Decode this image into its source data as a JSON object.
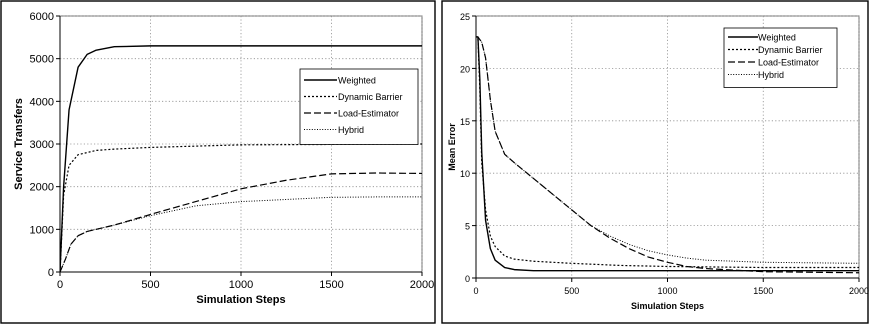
{
  "chart_data": [
    {
      "type": "line",
      "xlabel": "Simulation Steps",
      "ylabel": "Service Transfers",
      "xlim": [
        0,
        2000
      ],
      "ylim": [
        0,
        6000
      ],
      "xticks": [
        0,
        500,
        1000,
        1500,
        2000
      ],
      "yticks": [
        0,
        1000,
        2000,
        3000,
        4000,
        5000,
        6000
      ],
      "grid": true,
      "legend_position": "right",
      "series": [
        {
          "name": "Weighted",
          "style": "solid",
          "x": [
            0,
            20,
            50,
            100,
            150,
            200,
            300,
            500,
            1000,
            1500,
            2000
          ],
          "y": [
            0,
            2000,
            3800,
            4800,
            5100,
            5200,
            5280,
            5300,
            5300,
            5300,
            5300
          ]
        },
        {
          "name": "Dynamic Barrier",
          "style": "dotted",
          "x": [
            0,
            20,
            50,
            100,
            200,
            300,
            500,
            750,
            1000,
            1500,
            2000
          ],
          "y": [
            0,
            1800,
            2500,
            2750,
            2850,
            2880,
            2920,
            2950,
            2980,
            2990,
            3000
          ]
        },
        {
          "name": "Load-Estimator",
          "style": "dashed",
          "x": [
            0,
            30,
            60,
            100,
            150,
            200,
            300,
            500,
            750,
            1000,
            1250,
            1500,
            1750,
            2000
          ],
          "y": [
            0,
            300,
            650,
            850,
            950,
            1000,
            1100,
            1350,
            1650,
            1950,
            2150,
            2300,
            2320,
            2310
          ]
        },
        {
          "name": "Hybrid",
          "style": "dotted-fine",
          "x": [
            0,
            30,
            60,
            100,
            150,
            200,
            300,
            500,
            750,
            1000,
            1250,
            1500,
            1750,
            2000
          ],
          "y": [
            0,
            300,
            650,
            850,
            950,
            1000,
            1100,
            1320,
            1550,
            1650,
            1700,
            1750,
            1760,
            1760
          ]
        }
      ]
    },
    {
      "type": "line",
      "xlabel": "Simulation Steps",
      "ylabel": "Mean Error",
      "xlim": [
        0,
        2000
      ],
      "ylim": [
        0,
        25
      ],
      "xticks": [
        0,
        500,
        1000,
        1500,
        2000
      ],
      "yticks": [
        0,
        5,
        10,
        15,
        20,
        25
      ],
      "grid": true,
      "legend_position": "top-right",
      "series": [
        {
          "name": "Weighted",
          "style": "solid",
          "x": [
            0,
            10,
            20,
            30,
            50,
            75,
            100,
            150,
            200,
            300,
            500,
            1000,
            1500,
            2000
          ],
          "y": [
            23,
            23,
            19,
            12,
            5.5,
            2.8,
            1.7,
            1.0,
            0.8,
            0.7,
            0.7,
            0.7,
            0.7,
            0.7
          ]
        },
        {
          "name": "Dynamic Barrier",
          "style": "dotted",
          "x": [
            0,
            10,
            20,
            30,
            50,
            75,
            100,
            150,
            200,
            300,
            500,
            750,
            1000,
            1500,
            2000
          ],
          "y": [
            23,
            23,
            18,
            11,
            6.5,
            4.0,
            3.0,
            2.1,
            1.8,
            1.6,
            1.4,
            1.2,
            1.1,
            1.0,
            1.0
          ]
        },
        {
          "name": "Load-Estimator",
          "style": "dashed",
          "x": [
            0,
            10,
            30,
            50,
            75,
            100,
            150,
            200,
            300,
            400,
            500,
            600,
            700,
            800,
            900,
            1000,
            1100,
            1200,
            1500,
            2000
          ],
          "y": [
            23,
            23,
            22.5,
            21,
            17,
            14,
            11.8,
            11,
            9.5,
            8,
            6.5,
            5,
            3.8,
            2.8,
            2.0,
            1.5,
            1.1,
            0.9,
            0.6,
            0.5
          ]
        },
        {
          "name": "Hybrid",
          "style": "dotted-fine",
          "x": [
            0,
            10,
            30,
            50,
            75,
            100,
            150,
            200,
            300,
            400,
            500,
            600,
            700,
            800,
            900,
            1000,
            1100,
            1200,
            1500,
            2000
          ],
          "y": [
            23,
            23,
            22.5,
            21,
            17,
            14,
            11.8,
            11,
            9.5,
            8,
            6.5,
            5,
            4.0,
            3.2,
            2.6,
            2.2,
            1.9,
            1.7,
            1.5,
            1.4
          ]
        }
      ]
    }
  ]
}
